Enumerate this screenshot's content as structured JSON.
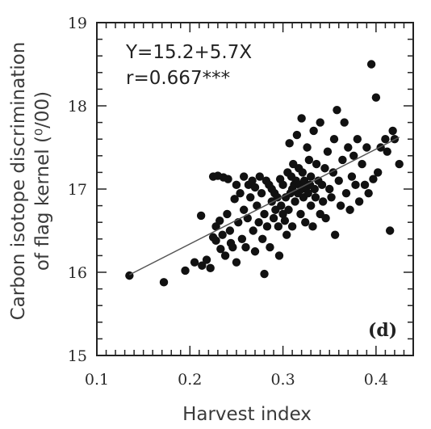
{
  "chart_data": {
    "type": "scatter",
    "xlabel": "Harvest index",
    "ylabel_line1": "Carbon isotope discrimination",
    "ylabel_line2": "of flag kernel (⁰/00)",
    "xlim": [
      0.1,
      0.44
    ],
    "ylim": [
      15,
      19
    ],
    "x_ticks": [
      0.1,
      0.2,
      0.3,
      0.4
    ],
    "x_tick_labels": [
      "0.1",
      "0.2",
      "0.3",
      "0.4"
    ],
    "y_ticks": [
      15,
      16,
      17,
      18,
      19
    ],
    "y_tick_labels": [
      "15",
      "16",
      "17",
      "18",
      "19"
    ],
    "equation": "Y=15.2+5.7X",
    "correlation": "r=0.667***",
    "panel_label": "(d)",
    "regression": {
      "intercept": 15.2,
      "slope": 5.7,
      "x_range": [
        0.135,
        0.425
      ]
    },
    "grid": false,
    "colors": {
      "points": "#111111",
      "line": "#555555",
      "axis": "#222222"
    },
    "points": [
      [
        0.135,
        15.96
      ],
      [
        0.172,
        15.88
      ],
      [
        0.195,
        16.02
      ],
      [
        0.205,
        16.12
      ],
      [
        0.212,
        16.68
      ],
      [
        0.213,
        16.08
      ],
      [
        0.218,
        16.15
      ],
      [
        0.222,
        16.05
      ],
      [
        0.225,
        16.42
      ],
      [
        0.225,
        17.15
      ],
      [
        0.228,
        16.38
      ],
      [
        0.228,
        16.55
      ],
      [
        0.23,
        17.16
      ],
      [
        0.232,
        16.62
      ],
      [
        0.233,
        16.28
      ],
      [
        0.235,
        16.45
      ],
      [
        0.236,
        17.14
      ],
      [
        0.238,
        16.2
      ],
      [
        0.24,
        16.7
      ],
      [
        0.241,
        17.12
      ],
      [
        0.243,
        16.5
      ],
      [
        0.244,
        16.35
      ],
      [
        0.246,
        16.3
      ],
      [
        0.248,
        16.88
      ],
      [
        0.25,
        17.05
      ],
      [
        0.25,
        16.12
      ],
      [
        0.252,
        16.6
      ],
      [
        0.254,
        16.95
      ],
      [
        0.256,
        16.4
      ],
      [
        0.258,
        16.75
      ],
      [
        0.258,
        17.15
      ],
      [
        0.26,
        16.3
      ],
      [
        0.262,
        16.65
      ],
      [
        0.263,
        17.05
      ],
      [
        0.265,
        16.9
      ],
      [
        0.267,
        17.1
      ],
      [
        0.268,
        16.5
      ],
      [
        0.27,
        16.25
      ],
      [
        0.27,
        17.02
      ],
      [
        0.272,
        16.8
      ],
      [
        0.274,
        16.6
      ],
      [
        0.275,
        17.15
      ],
      [
        0.277,
        16.95
      ],
      [
        0.278,
        16.4
      ],
      [
        0.28,
        15.98
      ],
      [
        0.28,
        16.7
      ],
      [
        0.282,
        17.1
      ],
      [
        0.283,
        16.55
      ],
      [
        0.285,
        17.05
      ],
      [
        0.286,
        16.3
      ],
      [
        0.288,
        16.85
      ],
      [
        0.288,
        17.0
      ],
      [
        0.29,
        16.65
      ],
      [
        0.291,
        16.95
      ],
      [
        0.292,
        16.75
      ],
      [
        0.294,
        16.9
      ],
      [
        0.295,
        16.55
      ],
      [
        0.296,
        16.2
      ],
      [
        0.297,
        17.12
      ],
      [
        0.298,
        16.8
      ],
      [
        0.3,
        16.7
      ],
      [
        0.3,
        17.05
      ],
      [
        0.302,
        16.62
      ],
      [
        0.303,
        16.9
      ],
      [
        0.304,
        16.45
      ],
      [
        0.305,
        17.2
      ],
      [
        0.306,
        16.75
      ],
      [
        0.307,
        17.55
      ],
      [
        0.308,
        16.95
      ],
      [
        0.309,
        17.15
      ],
      [
        0.31,
        16.55
      ],
      [
        0.31,
        17.0
      ],
      [
        0.311,
        17.3
      ],
      [
        0.312,
        17.05
      ],
      [
        0.313,
        16.85
      ],
      [
        0.314,
        17.1
      ],
      [
        0.315,
        17.65
      ],
      [
        0.316,
        16.95
      ],
      [
        0.317,
        17.25
      ],
      [
        0.318,
        17.05
      ],
      [
        0.319,
        16.7
      ],
      [
        0.32,
        17.0
      ],
      [
        0.32,
        17.85
      ],
      [
        0.321,
        17.2
      ],
      [
        0.322,
        16.9
      ],
      [
        0.323,
        17.1
      ],
      [
        0.324,
        16.6
      ],
      [
        0.325,
        17.02
      ],
      [
        0.326,
        17.5
      ],
      [
        0.327,
        16.95
      ],
      [
        0.328,
        17.35
      ],
      [
        0.329,
        17.05
      ],
      [
        0.33,
        16.8
      ],
      [
        0.33,
        17.15
      ],
      [
        0.332,
        16.55
      ],
      [
        0.333,
        17.7
      ],
      [
        0.334,
        17.0
      ],
      [
        0.335,
        16.9
      ],
      [
        0.336,
        17.3
      ],
      [
        0.338,
        17.1
      ],
      [
        0.34,
        16.7
      ],
      [
        0.34,
        17.8
      ],
      [
        0.342,
        17.05
      ],
      [
        0.343,
        16.85
      ],
      [
        0.345,
        17.25
      ],
      [
        0.346,
        16.65
      ],
      [
        0.348,
        17.45
      ],
      [
        0.35,
        17.0
      ],
      [
        0.352,
        16.9
      ],
      [
        0.354,
        17.2
      ],
      [
        0.355,
        17.6
      ],
      [
        0.356,
        16.45
      ],
      [
        0.358,
        17.95
      ],
      [
        0.36,
        17.1
      ],
      [
        0.362,
        16.8
      ],
      [
        0.364,
        17.35
      ],
      [
        0.366,
        17.8
      ],
      [
        0.368,
        16.95
      ],
      [
        0.37,
        17.5
      ],
      [
        0.372,
        16.75
      ],
      [
        0.374,
        17.15
      ],
      [
        0.376,
        17.4
      ],
      [
        0.378,
        17.05
      ],
      [
        0.38,
        17.6
      ],
      [
        0.382,
        16.85
      ],
      [
        0.385,
        17.3
      ],
      [
        0.388,
        17.05
      ],
      [
        0.39,
        17.5
      ],
      [
        0.392,
        16.95
      ],
      [
        0.395,
        18.5
      ],
      [
        0.397,
        17.12
      ],
      [
        0.4,
        18.1
      ],
      [
        0.402,
        17.2
      ],
      [
        0.405,
        17.5
      ],
      [
        0.41,
        17.6
      ],
      [
        0.412,
        17.45
      ],
      [
        0.415,
        16.5
      ],
      [
        0.418,
        17.7
      ],
      [
        0.42,
        17.6
      ],
      [
        0.425,
        17.3
      ]
    ]
  }
}
